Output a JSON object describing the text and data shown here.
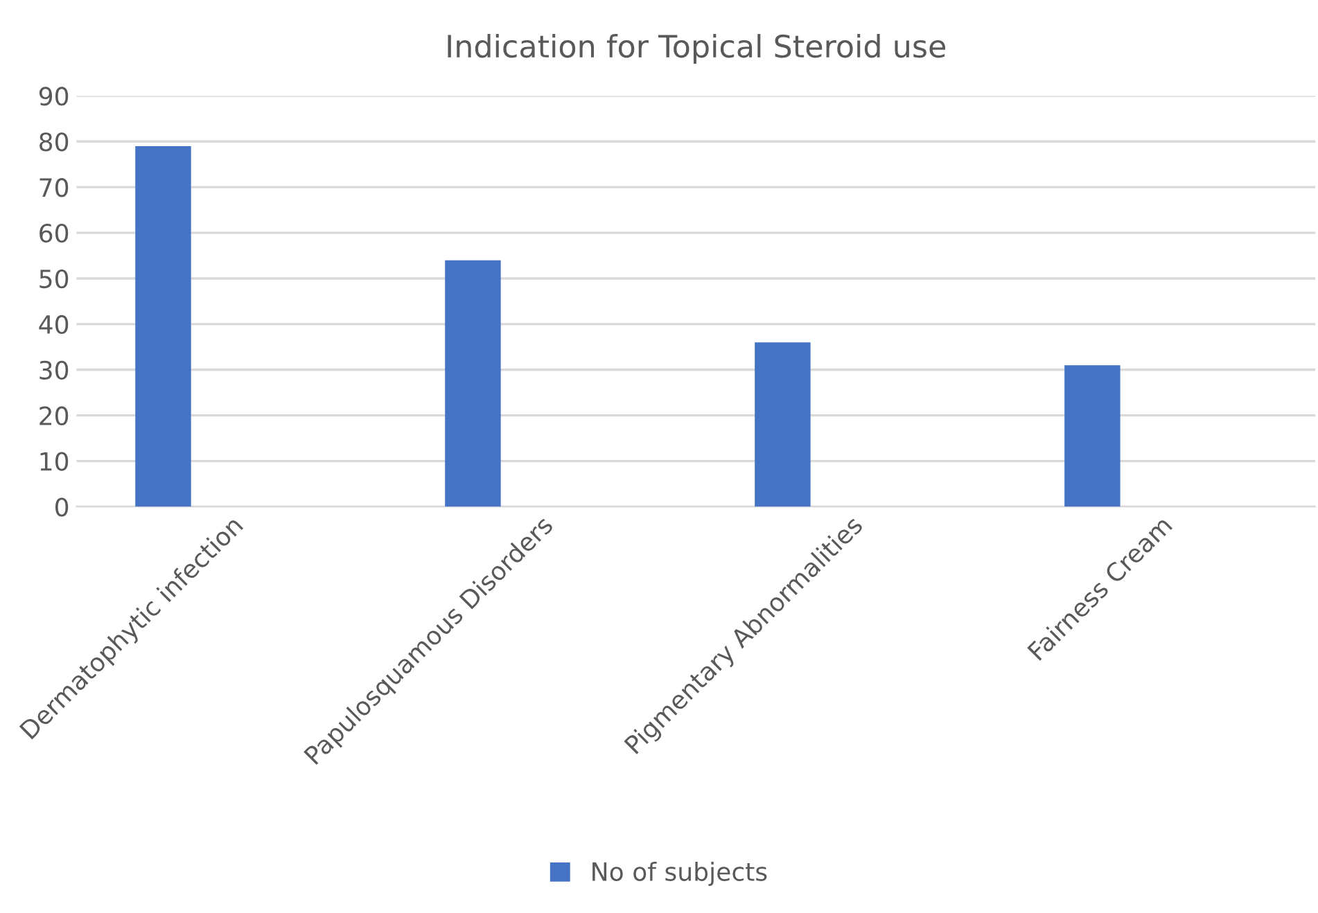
{
  "chart_data": {
    "type": "bar",
    "title": "Indication for Topical Steroid use",
    "categories": [
      "Dermatophytic infection",
      "Papulosquamous Disorders",
      "Pigmentary Abnormalities",
      "Fairness Cream"
    ],
    "series": [
      {
        "name": "No of subjects",
        "color": "#4472c4",
        "values": [
          79,
          54,
          36,
          31
        ]
      }
    ],
    "ylim": [
      0,
      90
    ],
    "yticks": [
      0,
      10,
      20,
      30,
      40,
      50,
      60,
      70,
      80,
      90
    ],
    "grid": "y",
    "legend": "bottom"
  }
}
